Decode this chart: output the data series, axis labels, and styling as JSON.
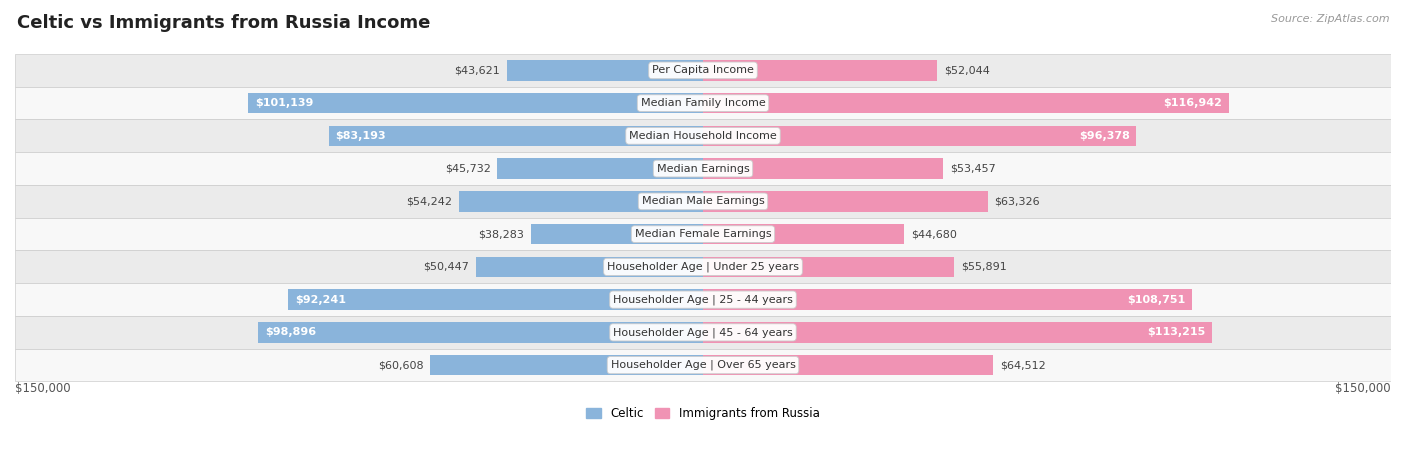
{
  "title": "Celtic vs Immigrants from Russia Income",
  "source": "Source: ZipAtlas.com",
  "categories": [
    "Per Capita Income",
    "Median Family Income",
    "Median Household Income",
    "Median Earnings",
    "Median Male Earnings",
    "Median Female Earnings",
    "Householder Age | Under 25 years",
    "Householder Age | 25 - 44 years",
    "Householder Age | 45 - 64 years",
    "Householder Age | Over 65 years"
  ],
  "celtic_values": [
    43621,
    101139,
    83193,
    45732,
    54242,
    38283,
    50447,
    92241,
    98896,
    60608
  ],
  "russia_values": [
    52044,
    116942,
    96378,
    53457,
    63326,
    44680,
    55891,
    108751,
    113215,
    64512
  ],
  "celtic_labels": [
    "$43,621",
    "$101,139",
    "$83,193",
    "$45,732",
    "$54,242",
    "$38,283",
    "$50,447",
    "$92,241",
    "$98,896",
    "$60,608"
  ],
  "russia_labels": [
    "$52,044",
    "$116,942",
    "$96,378",
    "$53,457",
    "$63,326",
    "$44,680",
    "$55,891",
    "$108,751",
    "$113,215",
    "$64,512"
  ],
  "max_value": 150000,
  "celtic_color": "#8ab4db",
  "russia_color": "#f093b4",
  "bar_height": 0.62,
  "background_color": "#ffffff",
  "row_bg_even": "#ebebeb",
  "row_bg_odd": "#f8f8f8",
  "legend_celtic": "Celtic",
  "legend_russia": "Immigrants from Russia",
  "x_label_left": "$150,000",
  "x_label_right": "$150,000",
  "title_fontsize": 13,
  "label_fontsize": 8,
  "cat_fontsize": 8,
  "axis_fontsize": 8.5,
  "source_fontsize": 8
}
